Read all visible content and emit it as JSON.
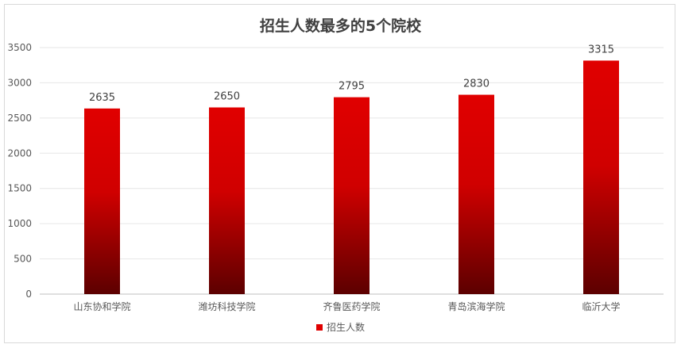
{
  "chart_data": {
    "type": "bar",
    "title": "招生人数最多的5个院校",
    "categories": [
      "山东协和学院",
      "潍坊科技学院",
      "齐鲁医药学院",
      "青岛滨海学院",
      "临沂大学"
    ],
    "series": [
      {
        "name": "招生人数",
        "values": [
          2635,
          2650,
          2795,
          2830,
          3315
        ]
      }
    ],
    "ylim": [
      0,
      3500
    ],
    "yticks": [
      0,
      500,
      1000,
      1500,
      2000,
      2500,
      3000,
      3500
    ],
    "grid": true,
    "legend_position": "bottom",
    "bar_gradient": [
      "#e00000",
      "#5c0000"
    ]
  }
}
